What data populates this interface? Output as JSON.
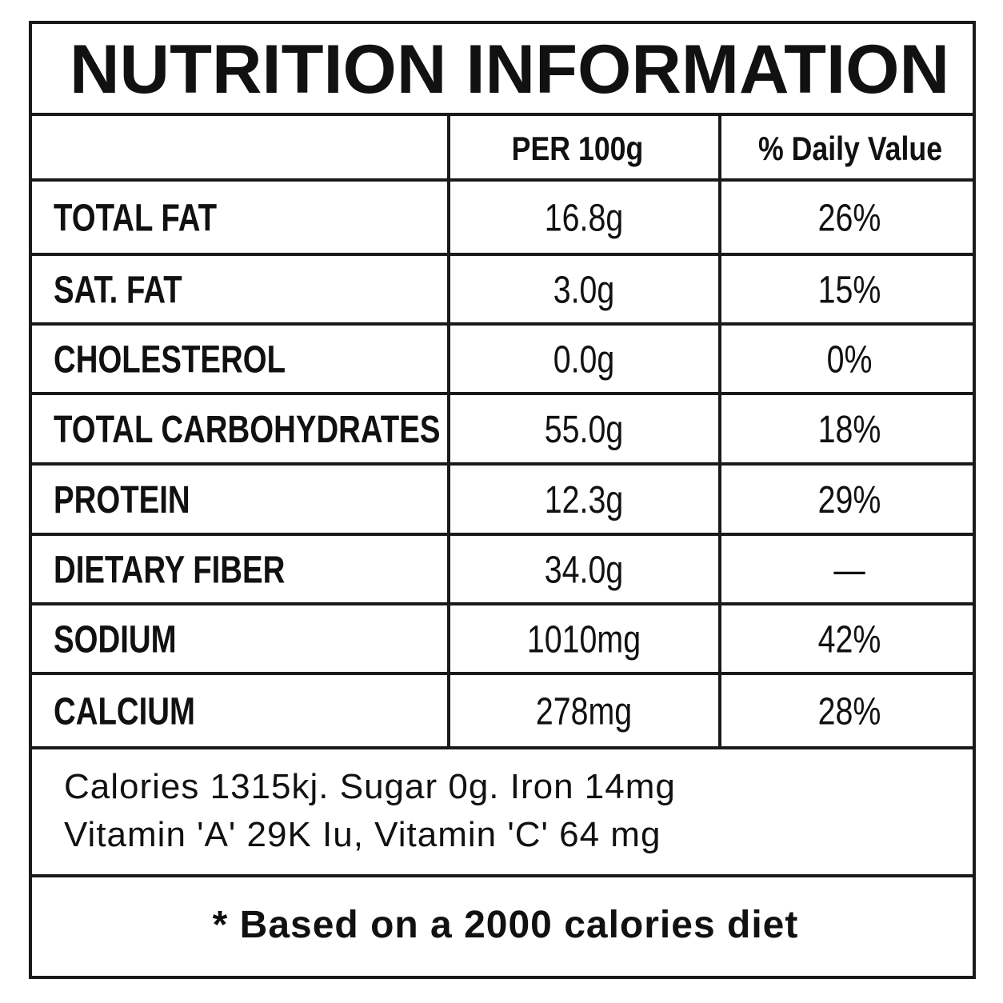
{
  "title": "NUTRITION INFORMATION",
  "table": {
    "header": [
      "PER 100g",
      "% Daily Value"
    ],
    "rows": [
      [
        "TOTAL FAT",
        "16.8g",
        "26%"
      ],
      [
        "SAT. FAT",
        "3.0g",
        "15%"
      ],
      [
        "CHOLESTEROL",
        "0.0g",
        "0%"
      ],
      [
        "TOTAL CARBOHYDRATES",
        "55.0g",
        "18%"
      ],
      [
        "PROTEIN",
        "12.3g",
        "29%"
      ],
      [
        "DIETARY FIBER",
        "34.0g",
        "—"
      ],
      [
        "SODIUM",
        "1010mg",
        "42%"
      ],
      [
        "CALCIUM",
        "278mg",
        "28%"
      ]
    ]
  },
  "notes": [
    "Calories 1315kj. Sugar 0g. Iron 14mg",
    "Vitamin 'A' 29K Iu, Vitamin 'C' 64 mg"
  ],
  "footer": "* Based on a 2000 calories diet"
}
